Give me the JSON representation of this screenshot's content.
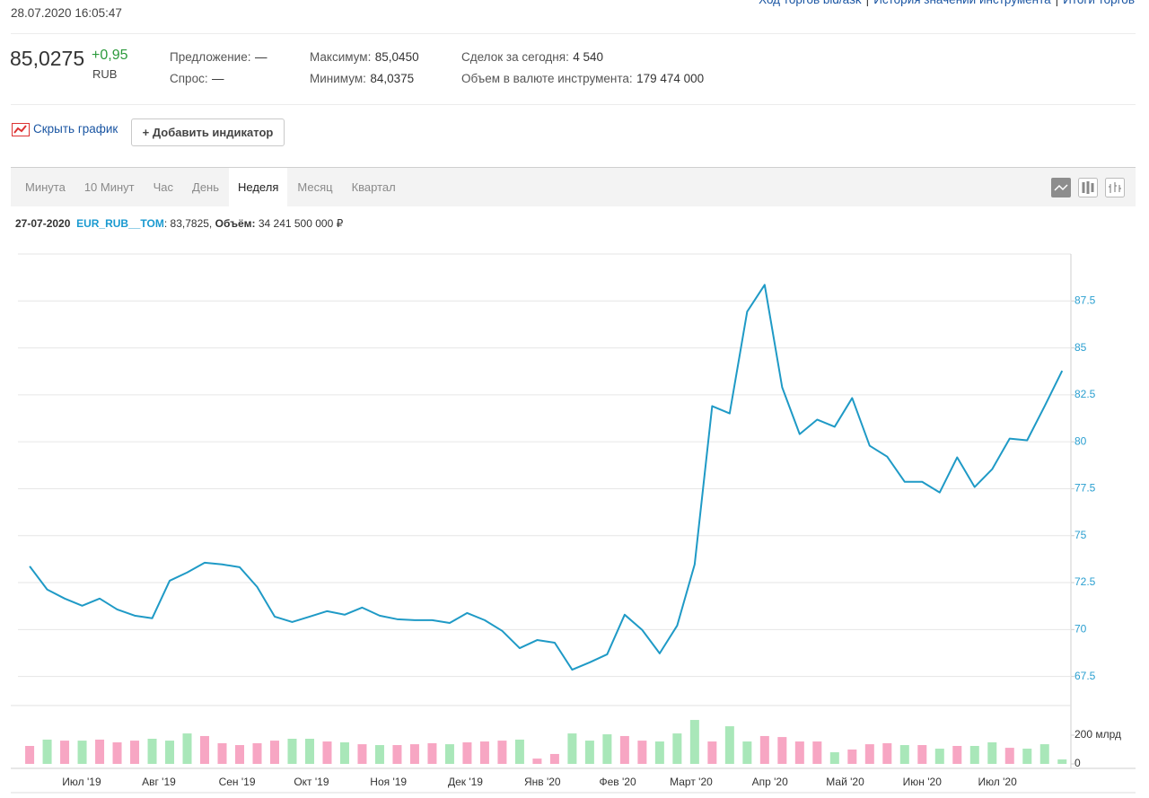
{
  "header": {
    "timestamp": "28.07.2020 16:05:47",
    "links": [
      "Ход торгов bid/ask",
      "История значений инструмента",
      "Итоги торгов"
    ],
    "separator": "|"
  },
  "quote": {
    "price": "85,0275",
    "change": "+0,95",
    "currency": "RUB",
    "fields": [
      {
        "label": "Предложение:",
        "value": "—"
      },
      {
        "label": "Спрос:",
        "value": "—"
      },
      {
        "label": "Максимум:",
        "value": "85,0450"
      },
      {
        "label": "Минимум:",
        "value": "84,0375"
      },
      {
        "label": "Сделок за сегодня:",
        "value": "4 540"
      },
      {
        "label": "Объем в валюте инструмента:",
        "value": "179 474 000"
      }
    ]
  },
  "controls": {
    "hide_chart": "Скрыть график",
    "add_indicator": "+ Добавить индикатор"
  },
  "tabs": {
    "items": [
      "Минута",
      "10 Минут",
      "Час",
      "День",
      "Неделя",
      "Месяц",
      "Квартал"
    ],
    "active": 4
  },
  "info": {
    "date": "27-07-2020",
    "ticker": "EUR_RUB__TOM",
    "price": ": 83,7825,",
    "volume_label": "Объём:",
    "volume": "34 241 500 000 ₽"
  },
  "chart_data": [
    {
      "type": "line",
      "categories": [
        null,
        null,
        null,
        null,
        null,
        null,
        null,
        null,
        null,
        null,
        null,
        null,
        null,
        null,
        null,
        null,
        null,
        null,
        null,
        null,
        null,
        null,
        null,
        null,
        null,
        null,
        null,
        null,
        null,
        null,
        null,
        null,
        null,
        null,
        null,
        null,
        null,
        null,
        null,
        null,
        null,
        null,
        null,
        null,
        null,
        null,
        null,
        null,
        null,
        null,
        null,
        null,
        null,
        null,
        null,
        null,
        null,
        null,
        null,
        null
      ],
      "series": [
        {
          "name": "EUR_RUB__TOM",
          "color": "#1f9ac6",
          "values": [
            73.37,
            72.13,
            71.65,
            71.27,
            71.65,
            71.07,
            70.74,
            70.6,
            72.6,
            73.04,
            73.56,
            73.47,
            73.32,
            72.27,
            70.69,
            70.4,
            70.69,
            70.98,
            70.79,
            71.17,
            70.74,
            70.55,
            70.5,
            70.5,
            70.35,
            70.88,
            70.5,
            69.93,
            69.01,
            69.44,
            69.3,
            67.86,
            68.25,
            68.68,
            70.79,
            69.98,
            68.73,
            70.21,
            73.47,
            81.9,
            81.51,
            86.93,
            88.36,
            82.9,
            80.41,
            81.18,
            80.8,
            82.33,
            79.79,
            79.21,
            77.87,
            77.87,
            77.3,
            79.17,
            77.59,
            78.54,
            80.17,
            80.08,
            81.9,
            83.78
          ]
        }
      ],
      "xlim": [
        -0.67,
        59.5
      ],
      "ylim": [
        66,
        90
      ],
      "yticks": [
        67.5,
        70,
        72.5,
        75,
        77.5,
        80,
        82.5,
        85,
        87.5
      ],
      "grid": true
    },
    {
      "type": "bar",
      "categories": [
        null,
        null,
        null,
        null,
        null,
        null,
        null,
        null,
        null,
        null,
        null,
        null,
        null,
        null,
        null,
        null,
        null,
        null,
        null,
        null,
        null,
        null,
        null,
        null,
        null,
        null,
        null,
        null,
        null,
        null,
        null,
        null,
        null,
        null,
        null,
        null,
        null,
        null,
        null,
        null,
        null,
        null,
        null,
        null,
        null,
        null,
        null,
        null,
        null,
        null,
        null,
        null,
        null,
        null,
        null,
        null,
        null,
        null,
        null,
        null
      ],
      "values": [
        125,
        169,
        162,
        162,
        169,
        150,
        162,
        175,
        162,
        212,
        194,
        144,
        131,
        144,
        162,
        175,
        175,
        156,
        150,
        137,
        131,
        131,
        137,
        144,
        137,
        150,
        156,
        162,
        169,
        37,
        69,
        212,
        162,
        206,
        194,
        162,
        156,
        212,
        306,
        156,
        262,
        156,
        194,
        187,
        156,
        156,
        81,
        100,
        137,
        144,
        131,
        131,
        106,
        125,
        125,
        150,
        112,
        106,
        137,
        31
      ],
      "colors": [
        "#f7a6c3",
        "#a9e7b9",
        "#f7a6c3",
        "#a9e7b9",
        "#f7a6c3",
        "#f7a6c3",
        "#f7a6c3",
        "#a9e7b9",
        "#a9e7b9",
        "#a9e7b9",
        "#f7a6c3",
        "#f7a6c3",
        "#f7a6c3",
        "#f7a6c3",
        "#f7a6c3",
        "#a9e7b9",
        "#a9e7b9",
        "#f7a6c3",
        "#a9e7b9",
        "#f7a6c3",
        "#a9e7b9",
        "#f7a6c3",
        "#f7a6c3",
        "#f7a6c3",
        "#a9e7b9",
        "#f7a6c3",
        "#f7a6c3",
        "#f7a6c3",
        "#a9e7b9",
        "#f7a6c3",
        "#f7a6c3",
        "#a9e7b9",
        "#a9e7b9",
        "#a9e7b9",
        "#f7a6c3",
        "#f7a6c3",
        "#a9e7b9",
        "#a9e7b9",
        "#a9e7b9",
        "#f7a6c3",
        "#a9e7b9",
        "#a9e7b9",
        "#f7a6c3",
        "#f7a6c3",
        "#f7a6c3",
        "#f7a6c3",
        "#a9e7b9",
        "#f7a6c3",
        "#f7a6c3",
        "#f7a6c3",
        "#a9e7b9",
        "#f7a6c3",
        "#a9e7b9",
        "#f7a6c3",
        "#a9e7b9",
        "#a9e7b9",
        "#f7a6c3",
        "#a9e7b9",
        "#a9e7b9",
        "#a9e7b9"
      ],
      "xlim": [
        -0.67,
        59.5
      ],
      "xticks": [
        {
          "value": 2.97,
          "label": "Июл '19"
        },
        {
          "value": 7.38,
          "label": "Авг '19"
        },
        {
          "value": 11.85,
          "label": "Сен '19"
        },
        {
          "value": 16.1,
          "label": "Окт '19"
        },
        {
          "value": 20.5,
          "label": "Ноя '19"
        },
        {
          "value": 24.9,
          "label": "Дек '19"
        },
        {
          "value": 29.3,
          "label": "Янв '20"
        },
        {
          "value": 33.6,
          "label": "Фев '20"
        },
        {
          "value": 37.8,
          "label": "Март '20"
        },
        {
          "value": 42.3,
          "label": "Апр '20"
        },
        {
          "value": 46.6,
          "label": "Май '20"
        },
        {
          "value": 51.0,
          "label": "Июн '20"
        },
        {
          "value": 55.3,
          "label": "Июл '20"
        }
      ],
      "ylim": [
        0,
        400
      ],
      "yticks": [
        0,
        {
          "value": 200,
          "label": "200 млрд"
        }
      ]
    }
  ]
}
